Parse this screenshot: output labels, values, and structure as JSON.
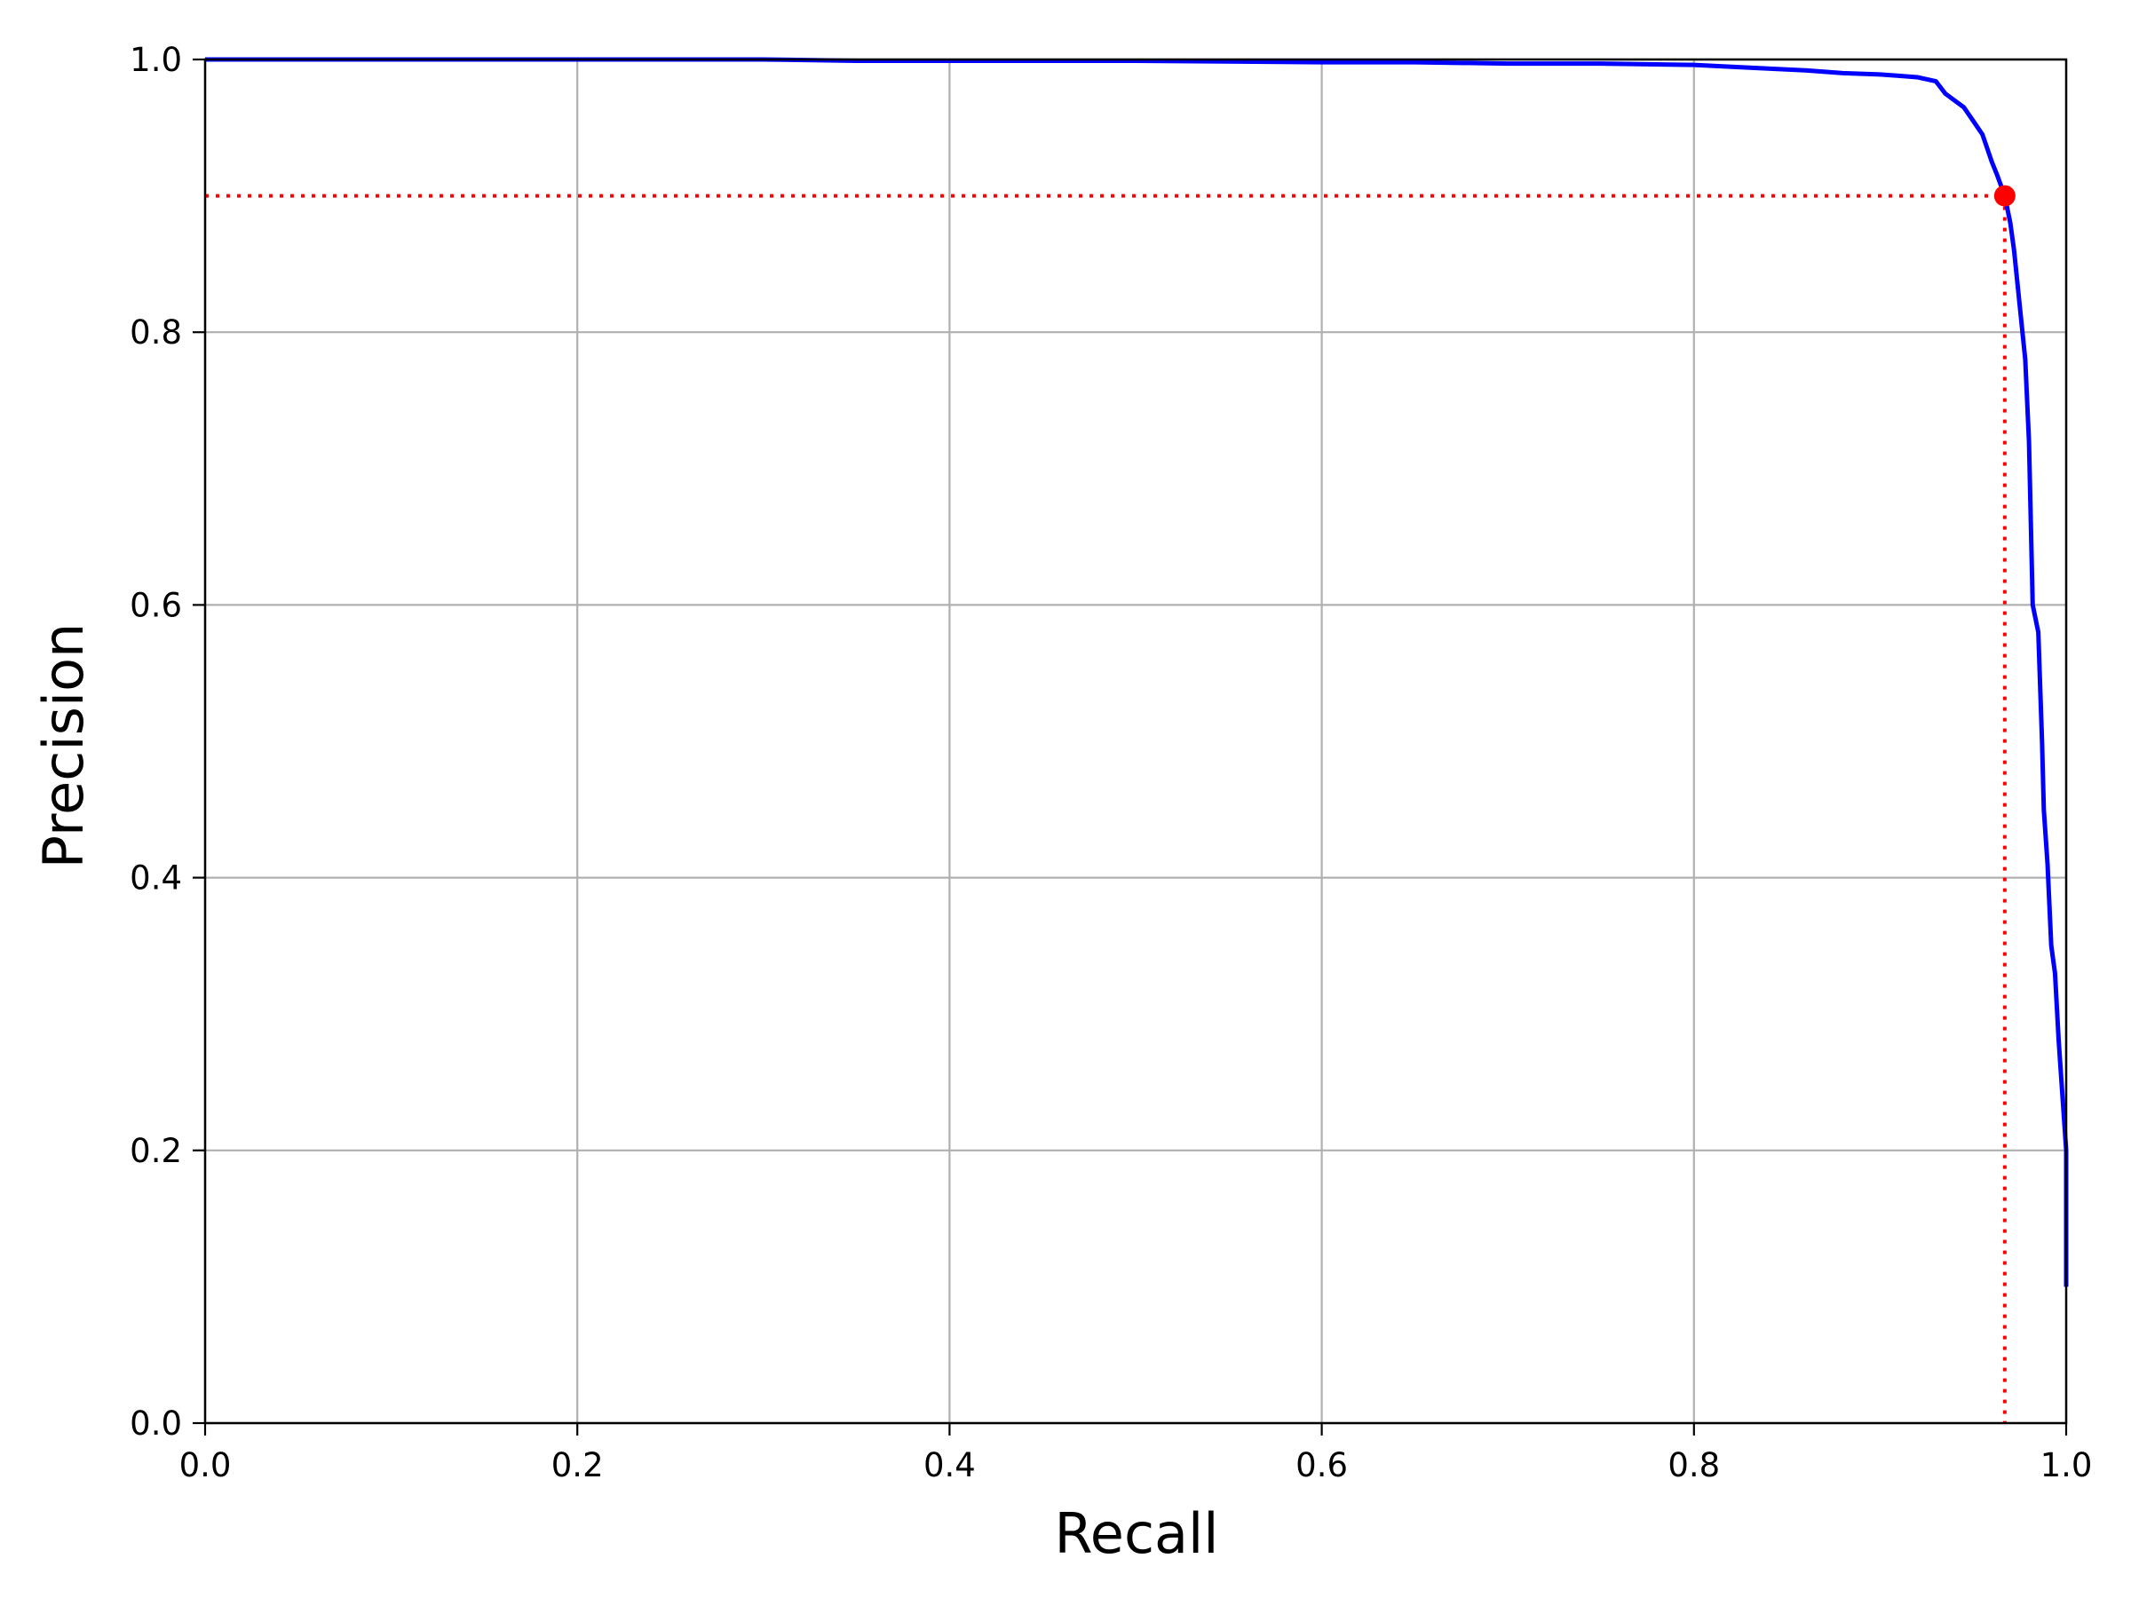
{
  "chart_data": {
    "type": "line",
    "title": "",
    "xlabel": "Recall",
    "ylabel": "Precision",
    "xlim": [
      0.0,
      1.0
    ],
    "ylim": [
      0.0,
      1.0
    ],
    "x_ticks": [
      "0.0",
      "0.2",
      "0.4",
      "0.6",
      "0.8",
      "1.0"
    ],
    "y_ticks": [
      "0.0",
      "0.2",
      "0.4",
      "0.6",
      "0.8",
      "1.0"
    ],
    "grid": true,
    "legend": "none",
    "colors": {
      "curve": "#0000ff",
      "marker": "#ff0000",
      "reference_lines": "#ff0000",
      "grid": "#b0b0b0"
    },
    "series": [
      {
        "x": [
          0.0,
          0.1,
          0.2,
          0.3,
          0.35,
          0.4,
          0.5,
          0.6,
          0.65,
          0.7,
          0.75,
          0.8,
          0.83,
          0.86,
          0.88,
          0.9,
          0.91,
          0.92,
          0.93,
          0.935,
          0.94,
          0.945,
          0.95,
          0.955,
          0.96,
          0.963,
          0.967,
          0.97,
          0.972,
          0.975,
          0.978,
          0.98,
          0.982,
          0.985,
          0.987,
          0.988,
          0.99,
          0.992,
          0.994,
          0.996,
          0.998,
          1.0,
          1.0
        ],
        "y": [
          1.0,
          1.0,
          1.0,
          1.0,
          0.999,
          0.999,
          0.999,
          0.998,
          0.998,
          0.997,
          0.997,
          0.996,
          0.994,
          0.992,
          0.99,
          0.989,
          0.988,
          0.987,
          0.984,
          0.975,
          0.97,
          0.965,
          0.955,
          0.945,
          0.925,
          0.915,
          0.9,
          0.88,
          0.86,
          0.82,
          0.78,
          0.72,
          0.6,
          0.58,
          0.5,
          0.45,
          0.41,
          0.35,
          0.33,
          0.28,
          0.24,
          0.2,
          0.1
        ]
      }
    ],
    "reference_point": {
      "x": 0.967,
      "y": 0.9
    }
  }
}
